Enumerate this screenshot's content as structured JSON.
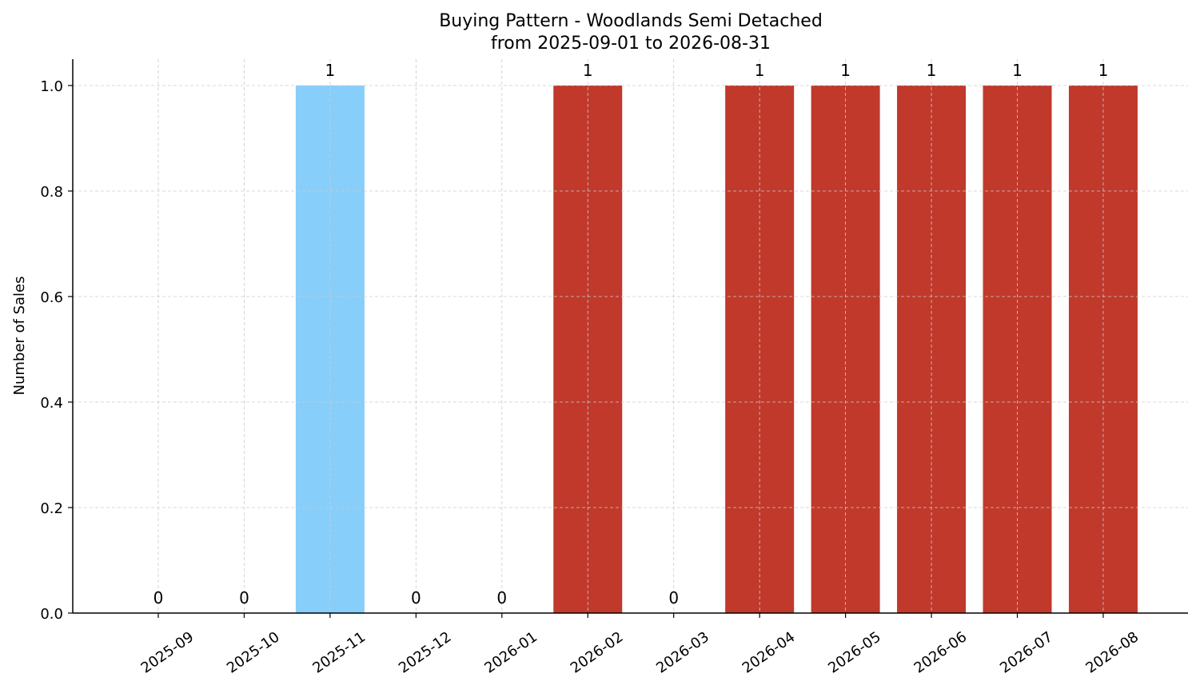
{
  "chart_data": {
    "type": "bar",
    "title": "Buying Pattern - Woodlands Semi Detached",
    "subtitle": "from 2025-09-01 to 2026-08-31",
    "xlabel": "",
    "ylabel": "Number of Sales",
    "ylim": [
      0,
      1.05
    ],
    "yticks": [
      "0.0",
      "0.2",
      "0.4",
      "0.6",
      "0.8",
      "1.0"
    ],
    "ytick_values": [
      0,
      0.2,
      0.4,
      0.6,
      0.8,
      1.0
    ],
    "grid": true,
    "categories": [
      "2025-09",
      "2025-10",
      "2025-11",
      "2025-12",
      "2026-01",
      "2026-02",
      "2026-03",
      "2026-04",
      "2026-05",
      "2026-06",
      "2026-07",
      "2026-08"
    ],
    "values": [
      0,
      0,
      1,
      0,
      0,
      1,
      0,
      1,
      1,
      1,
      1,
      1
    ],
    "bar_colors": [
      "#c0392b",
      "#c0392b",
      "#87cefa",
      "#c0392b",
      "#c0392b",
      "#c0392b",
      "#c0392b",
      "#c0392b",
      "#c0392b",
      "#c0392b",
      "#c0392b",
      "#c0392b"
    ],
    "data_labels": [
      "0",
      "0",
      "1",
      "0",
      "0",
      "1",
      "0",
      "1",
      "1",
      "1",
      "1",
      "1"
    ]
  }
}
